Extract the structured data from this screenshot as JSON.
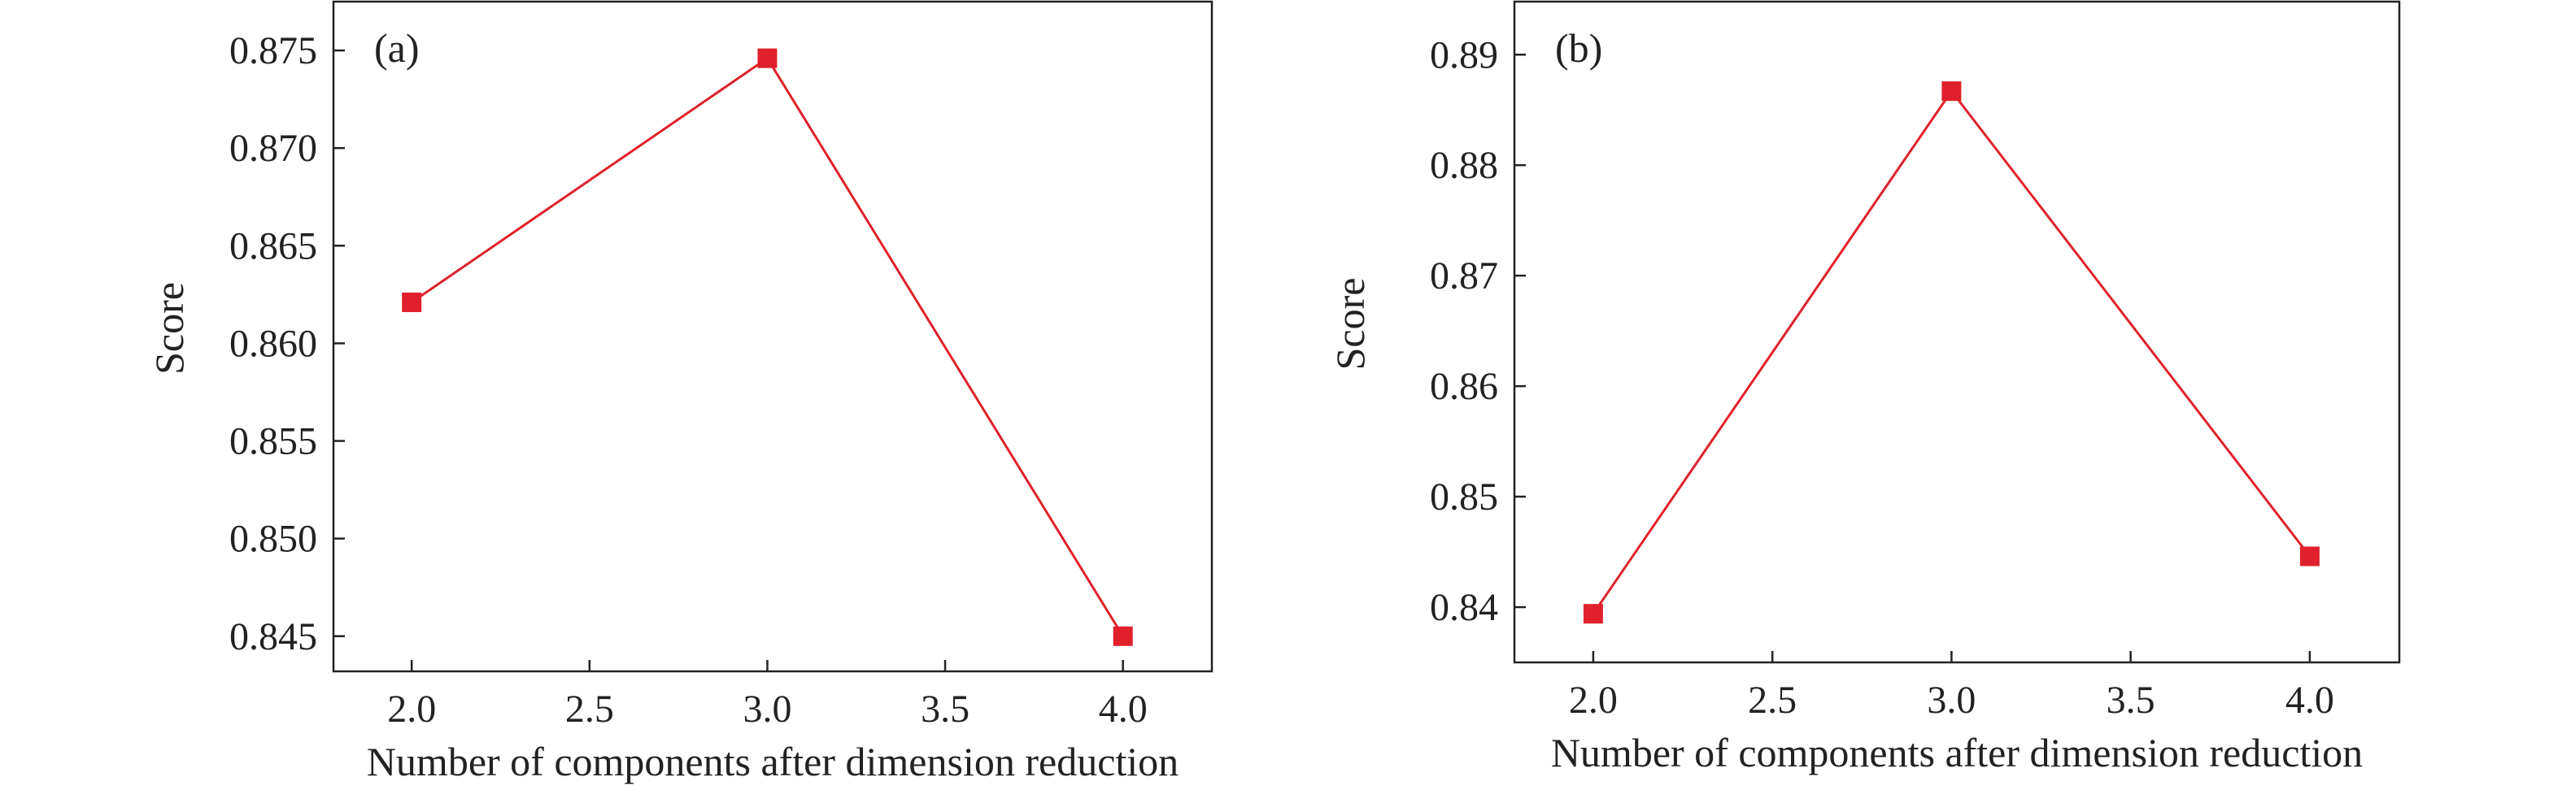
{
  "colors": {
    "line": "#e0212b",
    "marker": "#e0212b",
    "axis": "#222222"
  },
  "chart_data": [
    {
      "type": "line",
      "panel_label": "(a)",
      "xlabel": "Number of components after dimension reduction",
      "ylabel": "Score",
      "x": [
        2.0,
        3.0,
        4.0
      ],
      "series": [
        {
          "values": [
            0.8621,
            0.8746,
            0.845
          ]
        }
      ],
      "xlim": [
        1.78,
        4.25
      ],
      "ylim": [
        0.8432,
        0.8775
      ],
      "xticks": [
        2.0,
        2.5,
        3.0,
        3.5,
        4.0
      ],
      "xtick_labels": [
        "2.0",
        "2.5",
        "3.0",
        "3.5",
        "4.0"
      ],
      "yticks": [
        0.845,
        0.85,
        0.855,
        0.86,
        0.865,
        0.87,
        0.875
      ],
      "ytick_labels": [
        "0.845",
        "0.850",
        "0.855",
        "0.860",
        "0.865",
        "0.870",
        "0.875"
      ],
      "grid": false,
      "marker": "square"
    },
    {
      "type": "line",
      "panel_label": "(b)",
      "xlabel": "Number of components after dimension reduction",
      "ylabel": "Score",
      "x": [
        2.0,
        3.0,
        4.0
      ],
      "series": [
        {
          "values": [
            0.8394,
            0.8867,
            0.8446
          ]
        }
      ],
      "xlim": [
        1.78,
        4.25
      ],
      "ylim": [
        0.835,
        0.8948
      ],
      "xticks": [
        2.0,
        2.5,
        3.0,
        3.5,
        4.0
      ],
      "xtick_labels": [
        "2.0",
        "2.5",
        "3.0",
        "3.5",
        "4.0"
      ],
      "yticks": [
        0.84,
        0.85,
        0.86,
        0.87,
        0.88,
        0.89
      ],
      "ytick_labels": [
        "0.84",
        "0.85",
        "0.86",
        "0.87",
        "0.88",
        "0.89"
      ],
      "grid": false,
      "marker": "square"
    }
  ]
}
